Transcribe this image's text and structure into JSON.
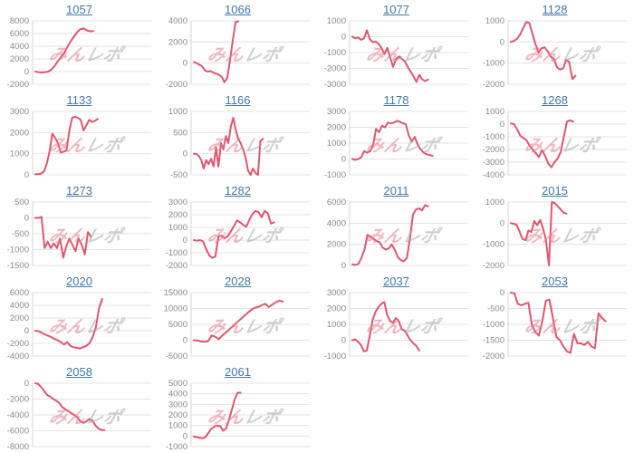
{
  "page": {
    "watermark": {
      "text_primary": "みん",
      "text_secondary": "レポ"
    },
    "colors": {
      "line": "#e0566e",
      "grid": "#e3e3e3",
      "axis": "#d6d6d6",
      "tick_text": "#8a8a8a",
      "title_link": "#4279a8",
      "watermark_primary": "#e57c8e",
      "watermark_secondary": "#a8a8a8"
    }
  },
  "chart_data": [
    {
      "type": "line",
      "title": "1057",
      "y_ticks": [
        8000,
        6000,
        4000,
        2000,
        0,
        -2000
      ],
      "ylim": [
        -2000,
        8000
      ],
      "x_fraction": 0.52,
      "values": [
        0,
        -100,
        -150,
        -100,
        0,
        300,
        900,
        1600,
        2300,
        3000,
        3900,
        4800,
        5500,
        6200,
        6700,
        6800,
        6500,
        6350,
        6400
      ]
    },
    {
      "type": "line",
      "title": "1066",
      "y_ticks": [
        4000,
        2000,
        0,
        -2000
      ],
      "ylim": [
        -2000,
        4000
      ],
      "x_fraction": 0.4,
      "values": [
        100,
        0,
        -150,
        -300,
        -700,
        -800,
        -750,
        -900,
        -1000,
        -1100,
        -1300,
        -1800,
        -1400,
        300,
        2200,
        3900,
        3950
      ]
    },
    {
      "type": "line",
      "title": "1077",
      "y_ticks": [
        1000,
        0,
        -1000,
        -2000,
        -3000
      ],
      "ylim": [
        -3000,
        1000
      ],
      "x_fraction": 0.68,
      "values": [
        0,
        -100,
        -50,
        -200,
        -100,
        400,
        -150,
        -350,
        -300,
        -450,
        -700,
        -1100,
        -700,
        -1300,
        -1900,
        -1400,
        -1250,
        -1400,
        -1550,
        -1900,
        -2200,
        -2500,
        -2850,
        -2400,
        -2700,
        -2800,
        -2700
      ]
    },
    {
      "type": "line",
      "title": "1128",
      "y_ticks": [
        1000,
        0,
        -1000,
        -2000
      ],
      "ylim": [
        -2000,
        1000
      ],
      "x_fraction": 0.58,
      "values": [
        0,
        50,
        150,
        350,
        650,
        950,
        900,
        400,
        -100,
        -500,
        -300,
        -250,
        -450,
        -700,
        -800,
        -1200,
        -1300,
        -1250,
        -850,
        -950,
        -1750,
        -1600
      ]
    },
    {
      "type": "line",
      "title": "1133",
      "y_ticks": [
        3000,
        2000,
        1000,
        0
      ],
      "ylim": [
        0,
        3000
      ],
      "x_fraction": 0.56,
      "values": [
        30,
        30,
        60,
        150,
        500,
        1100,
        1950,
        1750,
        1500,
        1050,
        1100,
        1150,
        2100,
        2700,
        2750,
        2700,
        2600,
        2100,
        2350,
        2600,
        2500,
        2550,
        2650
      ]
    },
    {
      "type": "line",
      "title": "1166",
      "y_ticks": [
        1000,
        500,
        0,
        -500
      ],
      "ylim": [
        -500,
        1000
      ],
      "x_fraction": 0.62,
      "values": [
        0,
        0,
        -50,
        -150,
        -350,
        -150,
        -250,
        -120,
        -300,
        150,
        -300,
        250,
        100,
        420,
        250,
        650,
        850,
        560,
        350,
        250,
        100,
        -100,
        -400,
        -500,
        -350,
        -460,
        -500,
        300,
        350
      ]
    },
    {
      "type": "line",
      "title": "1178",
      "y_ticks": [
        3000,
        2000,
        1000,
        0,
        -1000
      ],
      "ylim": [
        -1000,
        3000
      ],
      "x_fraction": 0.72,
      "values": [
        0,
        -50,
        0,
        100,
        500,
        400,
        500,
        900,
        1900,
        1700,
        2100,
        2000,
        2300,
        2250,
        2300,
        2400,
        2350,
        2250,
        2200,
        1500,
        1100,
        1400,
        900,
        600,
        400,
        300,
        250,
        200
      ]
    },
    {
      "type": "line",
      "title": "1268",
      "y_ticks": [
        1000,
        0,
        -1000,
        -2000,
        -3000,
        -4000
      ],
      "ylim": [
        -4000,
        1000
      ],
      "x_fraction": 0.56,
      "values": [
        50,
        0,
        -400,
        -900,
        -1100,
        -1250,
        -1700,
        -2000,
        -2300,
        -2600,
        -2050,
        -2500,
        -3100,
        -3400,
        -3000,
        -2700,
        -2200,
        -1000,
        200,
        300,
        200
      ]
    },
    {
      "type": "line",
      "title": "1273",
      "y_ticks": [
        500,
        0,
        -500,
        -1000,
        -1500
      ],
      "ylim": [
        -1500,
        500
      ],
      "x_fraction": 0.5,
      "values": [
        0,
        0,
        30,
        -950,
        -750,
        -950,
        -800,
        -950,
        -650,
        -1250,
        -900,
        -650,
        -850,
        -1050,
        -650,
        -850,
        -1150,
        -450,
        -600
      ]
    },
    {
      "type": "line",
      "title": "1282",
      "y_ticks": [
        3000,
        2000,
        1000,
        0,
        -1000,
        -2000
      ],
      "ylim": [
        -2000,
        3000
      ],
      "x_fraction": 0.72,
      "values": [
        0,
        -50,
        0,
        -100,
        -700,
        -1200,
        -1400,
        -1300,
        300,
        350,
        150,
        300,
        700,
        1100,
        1550,
        1400,
        1200,
        1050,
        1600,
        2050,
        2300,
        2200,
        1800,
        2300,
        2100,
        1300,
        1400
      ]
    },
    {
      "type": "line",
      "title": "2011",
      "y_ticks": [
        6000,
        4000,
        2000,
        0
      ],
      "ylim": [
        0,
        6000
      ],
      "x_fraction": 0.68,
      "values": [
        100,
        50,
        150,
        700,
        1500,
        2900,
        2700,
        2500,
        2300,
        2200,
        1700,
        1500,
        1600,
        2000,
        1500,
        800,
        500,
        400,
        700,
        2500,
        4800,
        5300,
        5400,
        5200,
        5700,
        5600
      ]
    },
    {
      "type": "line",
      "title": "2015",
      "y_ticks": [
        1000,
        0,
        -1000,
        -2000
      ],
      "ylim": [
        -2000,
        1000
      ],
      "x_fraction": 0.5,
      "values": [
        0,
        -30,
        -80,
        -400,
        -750,
        -800,
        -350,
        -420,
        100,
        -100,
        150,
        -250,
        -800,
        -2000,
        1000,
        950,
        800,
        650,
        500,
        450
      ]
    },
    {
      "type": "line",
      "title": "2020",
      "y_ticks": [
        6000,
        4000,
        2000,
        0,
        -2000,
        -4000
      ],
      "ylim": [
        -4000,
        6000
      ],
      "x_fraction": 0.6,
      "values": [
        0,
        -100,
        -300,
        -600,
        -800,
        -1000,
        -1300,
        -1500,
        -1800,
        -2200,
        -1800,
        -2400,
        -2600,
        -2700,
        -2800,
        -2600,
        -2400,
        -2000,
        -1000,
        500,
        3500,
        5000
      ]
    },
    {
      "type": "line",
      "title": "2028",
      "y_ticks": [
        15000,
        10000,
        5000,
        0,
        -5000
      ],
      "ylim": [
        -5000,
        15000
      ],
      "x_fraction": 0.8,
      "values": [
        0,
        -100,
        -400,
        -500,
        -300,
        1500,
        1100,
        300,
        1500,
        2500,
        3500,
        4500,
        5500,
        6500,
        7500,
        8500,
        9500,
        10200,
        10500,
        11000,
        11500,
        10500,
        11200,
        12000,
        12500,
        12200
      ]
    },
    {
      "type": "line",
      "title": "2037",
      "y_ticks": [
        3000,
        2000,
        1000,
        0,
        -1000
      ],
      "ylim": [
        -1000,
        3000
      ],
      "x_fraction": 0.6,
      "values": [
        0,
        50,
        -100,
        -300,
        -700,
        -650,
        300,
        1300,
        1800,
        2100,
        2300,
        2400,
        1600,
        1200,
        1100,
        1400,
        1200,
        700,
        600,
        300,
        0,
        -200,
        -350,
        -650
      ]
    },
    {
      "type": "line",
      "title": "2053",
      "y_ticks": [
        0,
        -500,
        -1000,
        -1500,
        -2000
      ],
      "ylim": [
        -2000,
        0
      ],
      "x_fraction": 0.85,
      "values": [
        0,
        -20,
        -350,
        -400,
        -350,
        -320,
        -1000,
        -1250,
        -1350,
        -900,
        -250,
        -220,
        -800,
        -1400,
        -1500,
        -1700,
        -1850,
        -1900,
        -1300,
        -1600,
        -1600,
        -1650,
        -1550,
        -1700,
        -1750,
        -650,
        -800,
        -900
      ]
    },
    {
      "type": "line",
      "title": "2058",
      "y_ticks": [
        0,
        -2000,
        -4000,
        -6000,
        -8000
      ],
      "ylim": [
        -8000,
        0
      ],
      "x_fraction": 0.62,
      "values": [
        0,
        -100,
        -500,
        -1000,
        -1500,
        -1700,
        -2000,
        -2200,
        -2500,
        -3000,
        -3300,
        -3500,
        -3800,
        -4000,
        -4300,
        -4800,
        -5000,
        -4800,
        -4500,
        -4700,
        -5300,
        -5700,
        -5900,
        -5900
      ]
    },
    {
      "type": "line",
      "title": "2061",
      "y_ticks": [
        5000,
        4000,
        3000,
        2000,
        1000,
        0,
        -1000
      ],
      "ylim": [
        -1000,
        5000
      ],
      "x_fraction": 0.42,
      "values": [
        -50,
        -100,
        -150,
        -200,
        -100,
        300,
        700,
        900,
        1000,
        950,
        500,
        700,
        1500,
        2500,
        3500,
        4100,
        4100
      ]
    }
  ]
}
